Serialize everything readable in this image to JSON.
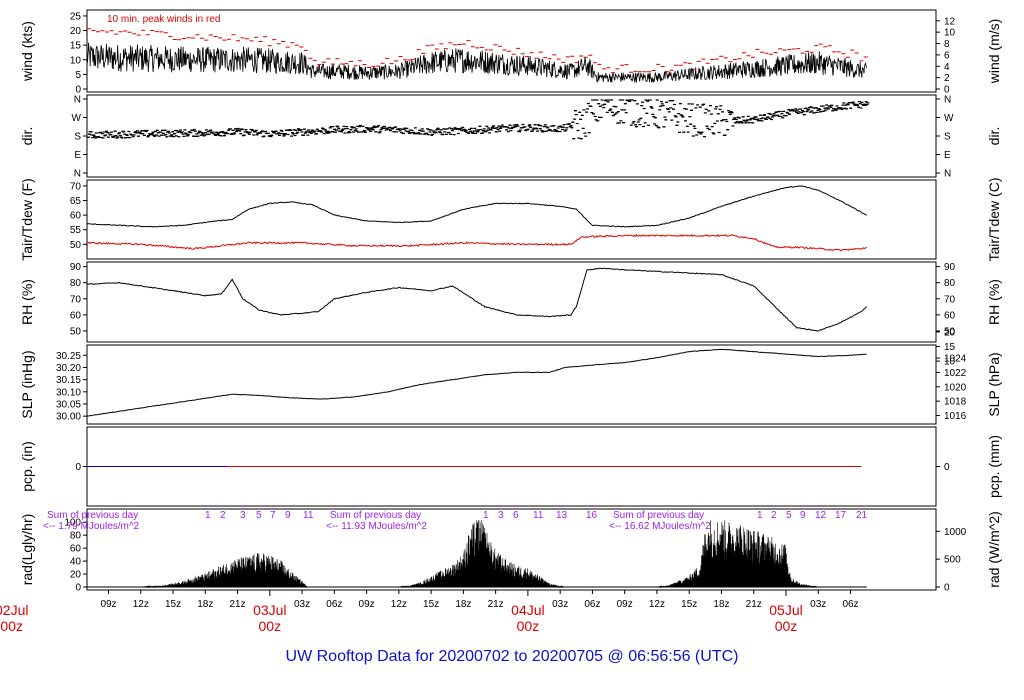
{
  "footer": "UW Rooftop Data for 20200702  to  20200705 @ 06:56:56  (UTC)",
  "chart_data": {
    "type": "line",
    "x_range_hours": [
      0,
      78.95
    ],
    "x_ticks": [
      {
        "h": 2,
        "label": "09z"
      },
      {
        "h": 5,
        "label": "12z"
      },
      {
        "h": 8,
        "label": "15z"
      },
      {
        "h": 11,
        "label": "18z"
      },
      {
        "h": 14,
        "label": "21z"
      },
      {
        "h": 20,
        "label": "03z"
      },
      {
        "h": 23,
        "label": "06z"
      },
      {
        "h": 26,
        "label": "09z"
      },
      {
        "h": 29,
        "label": "12z"
      },
      {
        "h": 32,
        "label": "15z"
      },
      {
        "h": 35,
        "label": "18z"
      },
      {
        "h": 38,
        "label": "21z"
      },
      {
        "h": 44,
        "label": "03z"
      },
      {
        "h": 47,
        "label": "06z"
      },
      {
        "h": 50,
        "label": "09z"
      },
      {
        "h": 53,
        "label": "12z"
      },
      {
        "h": 56,
        "label": "15z"
      },
      {
        "h": 59,
        "label": "18z"
      },
      {
        "h": 62,
        "label": "21z"
      },
      {
        "h": 68,
        "label": "03z"
      },
      {
        "h": 71,
        "label": "06z"
      }
    ],
    "day_marks": [
      {
        "h": -7,
        "label": "02Jul",
        "sub": "00z"
      },
      {
        "h": 17,
        "label": "03Jul",
        "sub": "00z"
      },
      {
        "h": 41,
        "label": "04Jul",
        "sub": "00z"
      },
      {
        "h": 65,
        "label": "05Jul",
        "sub": "00z"
      }
    ],
    "panels": [
      {
        "name": "wind",
        "ylabel": "wind (kts)",
        "y2label": "wind (m/s)",
        "ylim": [
          0,
          26
        ],
        "yticks": [
          0,
          5,
          10,
          15,
          20,
          25
        ],
        "y2ticks": [
          0,
          2,
          4,
          6,
          8,
          10,
          12
        ],
        "y2factor": 1.944,
        "annotation": "10 min. peak winds in red",
        "series": [
          {
            "role": "mean",
            "color": "#000000",
            "x": [
              0,
              5,
              10,
              15,
              20,
              21,
              24,
              26,
              29,
              32,
              35,
              38,
              41,
              43,
              45,
              46.5,
              47.5,
              50,
              53,
              56,
              59,
              62,
              65,
              68,
              71,
              72.5
            ],
            "y": [
              11,
              10.5,
              10,
              10,
              9,
              6,
              6,
              5.5,
              6,
              9,
              10,
              9,
              8,
              7,
              6,
              8,
              4,
              4,
              4,
              5,
              6,
              7,
              8,
              9,
              7,
              6
            ]
          },
          {
            "role": "peak",
            "color": "#e00000",
            "x": [
              0,
              5,
              10,
              15,
              20,
              21,
              24,
              26,
              29,
              32,
              35,
              38,
              41,
              43,
              45,
              46.5,
              47.5,
              50,
              53,
              56,
              59,
              62,
              65,
              68,
              71,
              72.5
            ],
            "y": [
              20,
              19,
              18,
              17,
              15,
              9,
              9,
              8.5,
              10,
              14,
              16,
              14,
              12,
              11,
              10,
              12,
              7,
              7,
              7,
              8,
              10,
              12,
              13,
              14,
              12,
              10
            ]
          }
        ]
      },
      {
        "name": "dir",
        "ylabel": "dir.",
        "y2label": "dir.",
        "ylim": [
          0,
          360
        ],
        "yticks": [
          0,
          90,
          180,
          270,
          360
        ],
        "ytick_labels": [
          "N",
          "E",
          "S",
          "W",
          "N"
        ],
        "series": [
          {
            "role": "direction",
            "color": "#000000",
            "x": [
              0,
              5,
              10,
              14,
              17,
              20,
              23,
              26,
              29,
              32,
              35,
              38,
              41,
              44,
              46,
              47,
              48,
              50,
              53,
              56,
              59,
              62,
              65,
              68,
              71,
              72.5
            ],
            "y": [
              185,
              190,
              195,
              200,
              190,
              200,
              210,
              215,
              210,
              200,
              205,
              215,
              220,
              215,
              240,
              300,
              330,
              310,
              290,
              260,
              250,
              260,
              290,
              310,
              330,
              335
            ]
          }
        ]
      },
      {
        "name": "temp",
        "ylabel": "Tair/Tdew (F)",
        "y2label": "Tair/Tdew (C)",
        "ylim": [
          46,
          71
        ],
        "yticks": [
          50,
          55,
          60,
          65,
          70
        ],
        "y2ticks": [
          10,
          15,
          20
        ],
        "series": [
          {
            "role": "Tair",
            "color": "#000000",
            "x": [
              0,
              3,
              6,
              9,
              12,
              13.5,
              15,
              17,
              19,
              21,
              23,
              26,
              29,
              32,
              35,
              38,
              41,
              44,
              45.5,
              47,
              50,
              53,
              56,
              59,
              62,
              65,
              66.5,
              68,
              70,
              72,
              72.5
            ],
            "y": [
              57,
              56.5,
              56,
              56.5,
              58,
              58.5,
              62,
              64,
              64.5,
              63.5,
              60,
              58,
              57.5,
              58,
              62,
              64,
              64,
              63,
              62,
              56.5,
              56,
              56.5,
              59,
              63,
              66.5,
              69.5,
              70,
              68.5,
              65,
              61,
              60
            ]
          },
          {
            "role": "Tdew",
            "color": "#e00000",
            "x": [
              0,
              5,
              10,
              15,
              20,
              25,
              30,
              35,
              40,
              45,
              46,
              50,
              55,
              60,
              62,
              64,
              66,
              68,
              70,
              72,
              72.5
            ],
            "y": [
              50.5,
              50,
              48.5,
              50.5,
              50.5,
              49.5,
              49.5,
              50.5,
              50,
              50,
              52.5,
              53,
              53,
              53,
              52,
              49,
              49,
              48.5,
              48,
              48.5,
              49
            ]
          }
        ]
      },
      {
        "name": "rh",
        "ylabel": "RH (%)",
        "y2label": "RH (%)",
        "ylim": [
          45,
          91
        ],
        "yticks": [
          50,
          60,
          70,
          80,
          90
        ],
        "y2ticks": [
          50,
          60,
          70,
          80,
          90
        ],
        "series": [
          {
            "role": "RH",
            "color": "#000000",
            "x": [
              0,
              3,
              6,
              9,
              11,
              12.5,
              13.5,
              14.5,
              16,
              18,
              20,
              21.5,
              23,
              26,
              29,
              32,
              34,
              37,
              40,
              43,
              45,
              45.5,
              46.5,
              48,
              50,
              53,
              56,
              59,
              62,
              64,
              66,
              68,
              70,
              72,
              72.5
            ],
            "y": [
              79,
              80,
              77,
              74,
              72,
              73,
              82,
              70,
              63,
              60,
              61,
              62,
              70,
              74,
              77,
              75,
              78,
              65,
              60,
              59,
              60,
              65,
              88,
              89,
              88,
              87,
              86,
              85,
              78,
              65,
              52,
              50,
              55,
              62,
              65
            ]
          }
        ]
      },
      {
        "name": "slp",
        "ylabel": "SLP (inHg)",
        "y2label": "SLP (hPa)",
        "ylim": [
          29.98,
          30.28
        ],
        "yticks": [
          30.0,
          30.05,
          30.1,
          30.15,
          30.2,
          30.25
        ],
        "y2ticks": [
          1016,
          1018,
          1020,
          1022,
          1024
        ],
        "y2convert": "hPa",
        "series": [
          {
            "role": "SLP",
            "color": "#000000",
            "x": [
              0,
              3,
              6,
              9,
              12,
              13.5,
              16,
              19,
              22,
              25,
              28,
              31,
              34,
              37,
              40,
              43,
              44.5,
              47,
              50,
              53,
              56,
              59,
              62,
              65,
              68,
              71,
              72.5
            ],
            "y": [
              30.0,
              30.02,
              30.04,
              30.06,
              30.08,
              30.09,
              30.085,
              30.075,
              30.07,
              30.08,
              30.1,
              30.13,
              30.15,
              30.17,
              30.18,
              30.18,
              30.2,
              30.21,
              30.22,
              30.24,
              30.265,
              30.275,
              30.265,
              30.255,
              30.245,
              30.25,
              30.255
            ]
          }
        ]
      },
      {
        "name": "pcp",
        "ylabel": "pcp. (in)",
        "y2label": "pcp. (mm)",
        "ylim": [
          -1,
          1
        ],
        "yticks": [
          0
        ],
        "y2ticks": [
          0
        ],
        "series": [
          {
            "role": "previous",
            "color": "#0000c0",
            "x": [
              0,
              13
            ],
            "y": [
              0,
              0
            ]
          },
          {
            "role": "current",
            "color": "#e00000",
            "x": [
              13,
              72.5
            ],
            "y": [
              0,
              0
            ]
          }
        ]
      },
      {
        "name": "rad",
        "ylabel": "rad(Lgly/hr)",
        "y2label": "rad (W/m^2)",
        "ylim": [
          0,
          105
        ],
        "yticks": [
          0,
          20,
          40,
          60,
          80,
          100
        ],
        "y2ticks": [
          0,
          500,
          1000
        ],
        "y2factor": 0.086,
        "series": [
          {
            "role": "radiation",
            "color": "#000000",
            "x": [
              5,
              7,
              9,
              11,
              12,
              13,
              14,
              15,
              16,
              17,
              18,
              19,
              20,
              20.5,
              29,
              30,
              31,
              32,
              33,
              34,
              35,
              35.5,
              36,
              36.5,
              37,
              37.5,
              38,
              39,
              40,
              41,
              42,
              43,
              44,
              44.5,
              53,
              54,
              55,
              56,
              57,
              57.5,
              58,
              59,
              60,
              61,
              62,
              63,
              64,
              65,
              65.5,
              66,
              66.5,
              67,
              67.5,
              68
            ],
            "y": [
              0,
              2,
              8,
              18,
              25,
              32,
              38,
              40,
              45,
              42,
              35,
              20,
              8,
              0,
              0,
              2,
              6,
              14,
              22,
              30,
              45,
              70,
              85,
              95,
              80,
              60,
              48,
              35,
              28,
              25,
              15,
              5,
              1,
              0,
              0,
              2,
              8,
              15,
              30,
              80,
              90,
              88,
              85,
              82,
              75,
              70,
              62,
              55,
              12,
              8,
              4,
              3,
              1,
              0
            ]
          }
        ],
        "daily_totals": [
          {
            "label": "Sum of previous day",
            "value": "<-- 1.79 MJoules/m^2"
          },
          {
            "label": "Sum of previous day",
            "value": "<-- 11.93 MJoules/m^2"
          },
          {
            "label": "Sum of previous day",
            "value": "<-- 16.62 MJoules/m^2"
          }
        ],
        "hour_labels": [
          [
            "1",
            "2",
            "3",
            "5",
            "7",
            "9",
            "11"
          ],
          [
            "1",
            "3",
            "6",
            "11",
            "13",
            "16"
          ],
          [
            "1",
            "2",
            "5",
            "9",
            "12",
            "17",
            "21"
          ]
        ]
      }
    ]
  }
}
